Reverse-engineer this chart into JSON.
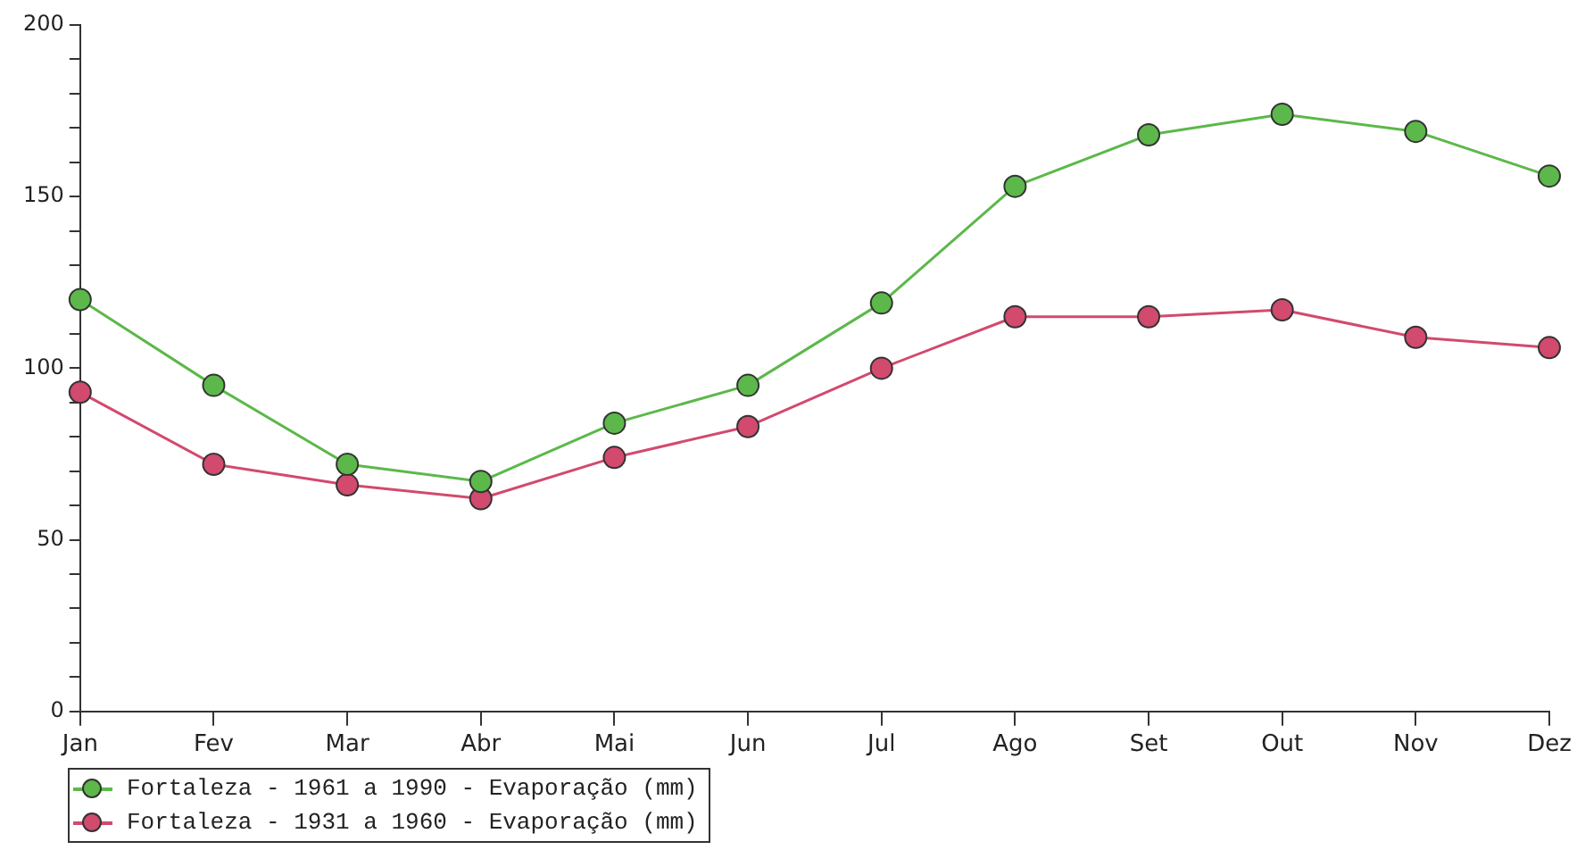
{
  "chart_data": {
    "type": "line",
    "categories": [
      "Jan",
      "Fev",
      "Mar",
      "Abr",
      "Mai",
      "Jun",
      "Jul",
      "Ago",
      "Set",
      "Out",
      "Nov",
      "Dez"
    ],
    "series": [
      {
        "name": "Fortaleza - 1961 a 1990 - Evaporação (mm)",
        "color": "#5cb84a",
        "values": [
          120,
          95,
          72,
          67,
          84,
          95,
          119,
          153,
          168,
          174,
          169,
          156
        ]
      },
      {
        "name": "Fortaleza - 1931 a 1960 - Evaporação (mm)",
        "color": "#d24a6e",
        "values": [
          93,
          72,
          66,
          62,
          74,
          83,
          100,
          115,
          115,
          117,
          109,
          106
        ]
      }
    ],
    "ylim": [
      0,
      200
    ],
    "yticks": [
      0,
      {
        "value": 10,
        "label": null
      },
      {
        "value": 20,
        "label": null
      },
      {
        "value": 30,
        "label": null
      },
      {
        "value": 40,
        "label": null
      },
      50,
      {
        "value": 60,
        "label": null
      },
      {
        "value": 70,
        "label": null
      },
      {
        "value": 80,
        "label": null
      },
      {
        "value": 90,
        "label": null
      },
      100,
      {
        "value": 110,
        "label": null
      },
      {
        "value": 120,
        "label": null
      },
      {
        "value": 130,
        "label": null
      },
      {
        "value": 140,
        "label": null
      },
      150,
      {
        "value": 160,
        "label": null
      },
      {
        "value": 170,
        "label": null
      },
      {
        "value": 180,
        "label": null
      },
      {
        "value": 190,
        "label": null
      },
      200
    ],
    "grid": false,
    "legend": "bottom left",
    "marker": "circle",
    "line_style": "solid"
  }
}
